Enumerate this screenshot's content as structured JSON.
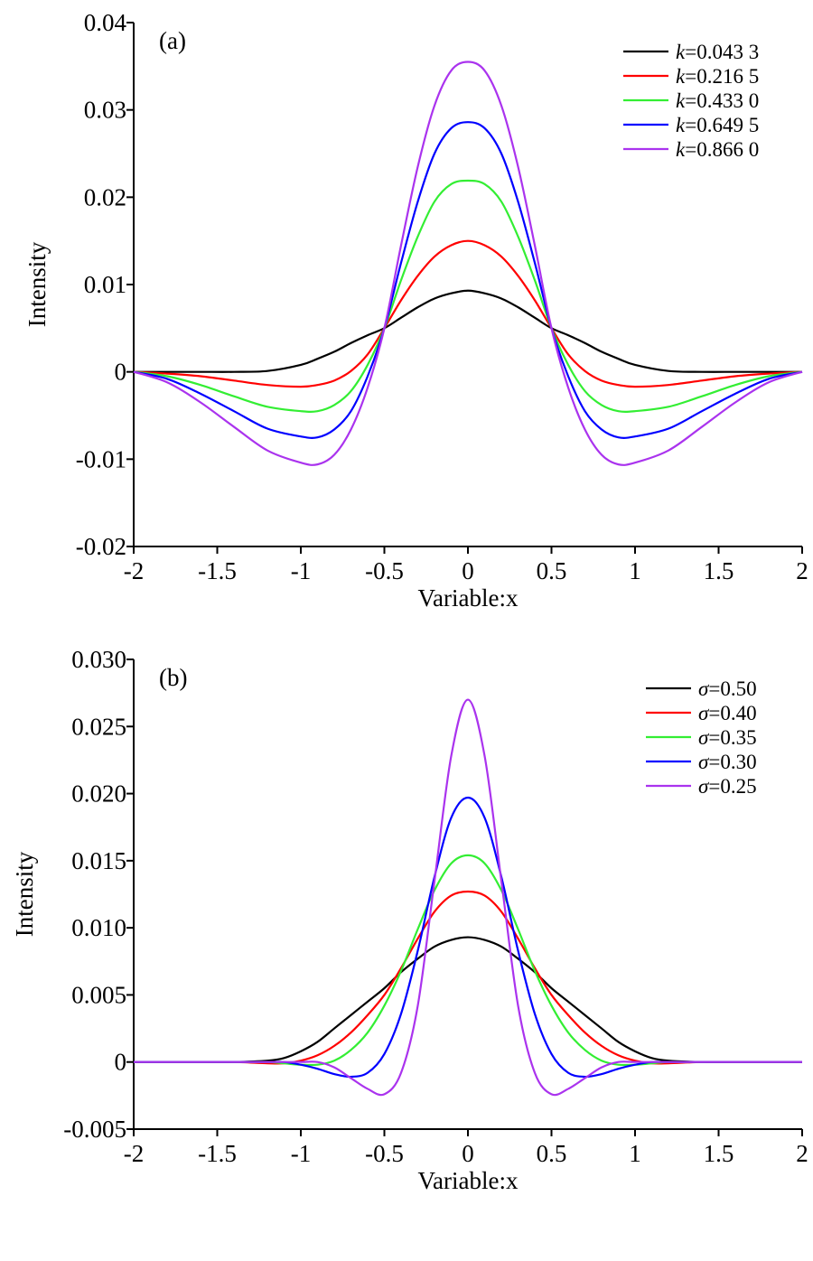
{
  "chart_data": [
    {
      "type": "line",
      "panel_label": "(a)",
      "xlabel": "Variable:x",
      "ylabel": "Intensity",
      "xlim": [
        -2,
        2
      ],
      "ylim": [
        -0.02,
        0.04
      ],
      "x_ticks": [
        -2,
        -1.5,
        -1,
        -0.5,
        0,
        0.5,
        1,
        1.5,
        2
      ],
      "x_tick_labels": [
        "-2",
        "-1.5",
        "-1",
        "-0.5",
        "0",
        "0.5",
        "1",
        "1.5",
        "2"
      ],
      "y_ticks": [
        -0.02,
        -0.01,
        0,
        0.01,
        0.02,
        0.03,
        0.04
      ],
      "y_tick_labels": [
        "-0.02",
        "-0.01",
        "0",
        "0.01",
        "0.02",
        "0.03",
        "0.04"
      ],
      "grid": false,
      "legend_position": "top-right",
      "x": [
        -2,
        -1.8,
        -1.6,
        -1.4,
        -1.2,
        -1,
        -0.9,
        -0.8,
        -0.7,
        -0.6,
        -0.5,
        -0.4,
        -0.3,
        -0.2,
        -0.1,
        0,
        0.1,
        0.2,
        0.3,
        0.4,
        0.5,
        0.6,
        0.7,
        0.8,
        0.9,
        1,
        1.2,
        1.4,
        1.6,
        1.8,
        2
      ],
      "series": [
        {
          "legend_var": "k",
          "legend_value": "=0.043 3",
          "color": "#000000",
          "values": [
            0,
            0,
            0,
            0,
            0.0001,
            0.0008,
            0.0015,
            0.0023,
            0.0033,
            0.0042,
            0.005,
            0.0062,
            0.0074,
            0.0084,
            0.009,
            0.0093,
            0.009,
            0.0084,
            0.0074,
            0.0062,
            0.005,
            0.0042,
            0.0033,
            0.0023,
            0.0015,
            0.0008,
            0.0001,
            0,
            0,
            0,
            0
          ]
        },
        {
          "legend_var": "k",
          "legend_value": "=0.216 5",
          "color": "#ff0000",
          "values": [
            0,
            -0.0002,
            -0.0005,
            -0.001,
            -0.0015,
            -0.0017,
            -0.0015,
            -0.001,
            0.0001,
            0.002,
            0.005,
            0.0082,
            0.011,
            0.0132,
            0.0145,
            0.015,
            0.0145,
            0.0132,
            0.011,
            0.0082,
            0.005,
            0.002,
            0.0001,
            -0.001,
            -0.0015,
            -0.0017,
            -0.0015,
            -0.001,
            -0.0005,
            -0.0002,
            0
          ]
        },
        {
          "legend_var": "k",
          "legend_value": "=0.433 0",
          "color": "#33ee33",
          "values": [
            0,
            -0.0005,
            -0.0015,
            -0.0028,
            -0.004,
            -0.0045,
            -0.0045,
            -0.0038,
            -0.0022,
            0.0008,
            0.005,
            0.0105,
            0.0155,
            0.0195,
            0.0215,
            0.0219,
            0.0215,
            0.0195,
            0.0155,
            0.0105,
            0.005,
            0.0008,
            -0.0022,
            -0.0038,
            -0.0045,
            -0.0045,
            -0.004,
            -0.0028,
            -0.0015,
            -0.0005,
            0
          ]
        },
        {
          "legend_var": "k",
          "legend_value": "=0.649 5",
          "color": "#0000ff",
          "values": [
            0,
            -0.0008,
            -0.0025,
            -0.0045,
            -0.0065,
            -0.0074,
            -0.0075,
            -0.0066,
            -0.0045,
            -0.0005,
            0.005,
            0.0125,
            0.0195,
            0.025,
            0.0279,
            0.0286,
            0.0279,
            0.025,
            0.0195,
            0.0125,
            0.005,
            -0.0005,
            -0.0045,
            -0.0066,
            -0.0075,
            -0.0074,
            -0.0065,
            -0.0045,
            -0.0025,
            -0.0008,
            0
          ]
        },
        {
          "legend_var": "k",
          "legend_value": "=0.866 0",
          "color": "#aa33ee",
          "values": [
            0,
            -0.0012,
            -0.0035,
            -0.0063,
            -0.009,
            -0.0104,
            -0.0106,
            -0.0095,
            -0.0066,
            -0.0018,
            0.005,
            0.0145,
            0.0235,
            0.0305,
            0.0345,
            0.0355,
            0.0345,
            0.0305,
            0.0235,
            0.0145,
            0.005,
            -0.0018,
            -0.0066,
            -0.0095,
            -0.0106,
            -0.0104,
            -0.009,
            -0.0063,
            -0.0035,
            -0.0012,
            0
          ]
        }
      ]
    },
    {
      "type": "line",
      "panel_label": "(b)",
      "xlabel": "Variable:x",
      "ylabel": "Intensity",
      "xlim": [
        -2,
        2
      ],
      "ylim": [
        -0.005,
        0.03
      ],
      "x_ticks": [
        -2,
        -1.5,
        -1,
        -0.5,
        0,
        0.5,
        1,
        1.5,
        2
      ],
      "x_tick_labels": [
        "-2",
        "-1.5",
        "-1",
        "-0.5",
        "0",
        "0.5",
        "1",
        "1.5",
        "2"
      ],
      "y_ticks": [
        -0.005,
        0,
        0.005,
        0.01,
        0.015,
        0.02,
        0.025,
        0.03
      ],
      "y_tick_labels": [
        "-0.005",
        "0",
        "0.005",
        "0.010",
        "0.015",
        "0.020",
        "0.025",
        "0.030"
      ],
      "grid": false,
      "legend_position": "top-right",
      "x": [
        -2,
        -1.8,
        -1.6,
        -1.4,
        -1.2,
        -1.1,
        -1,
        -0.9,
        -0.8,
        -0.7,
        -0.6,
        -0.5,
        -0.4,
        -0.3,
        -0.2,
        -0.1,
        0,
        0.1,
        0.2,
        0.3,
        0.4,
        0.5,
        0.6,
        0.7,
        0.8,
        0.9,
        1,
        1.1,
        1.2,
        1.4,
        1.6,
        1.8,
        2
      ],
      "series": [
        {
          "legend_var": "σ",
          "legend_value": "=0.50",
          "color": "#000000",
          "values": [
            0,
            0,
            0,
            0,
            0.0001,
            0.0003,
            0.0008,
            0.0015,
            0.0025,
            0.0035,
            0.0045,
            0.0055,
            0.0067,
            0.0077,
            0.0086,
            0.0091,
            0.0093,
            0.0091,
            0.0086,
            0.0077,
            0.0067,
            0.0055,
            0.0045,
            0.0035,
            0.0025,
            0.0015,
            0.0008,
            0.0003,
            0.0001,
            0,
            0,
            0,
            0
          ]
        },
        {
          "legend_var": "σ",
          "legend_value": "=0.40",
          "color": "#ff0000",
          "values": [
            0,
            0,
            0,
            0,
            -0.0001,
            -0.0001,
            0.0001,
            0.0005,
            0.0012,
            0.0022,
            0.0035,
            0.005,
            0.007,
            0.0092,
            0.0112,
            0.0124,
            0.0127,
            0.0124,
            0.0112,
            0.0092,
            0.007,
            0.005,
            0.0035,
            0.0022,
            0.0012,
            0.0005,
            0.0001,
            -0.0001,
            -0.0001,
            0,
            0,
            0,
            0
          ]
        },
        {
          "legend_var": "σ",
          "legend_value": "=0.35",
          "color": "#33ee33",
          "values": [
            0,
            0,
            0,
            0,
            0,
            -0.0001,
            -0.0002,
            -0.0002,
            0.0001,
            0.0009,
            0.0022,
            0.0042,
            0.0068,
            0.0099,
            0.0128,
            0.0148,
            0.0154,
            0.0148,
            0.0128,
            0.0099,
            0.0068,
            0.0042,
            0.0022,
            0.0009,
            0.0001,
            -0.0002,
            -0.0002,
            -0.0001,
            0,
            0,
            0,
            0,
            0
          ]
        },
        {
          "legend_var": "σ",
          "legend_value": "=0.30",
          "color": "#0000ff",
          "values": [
            0,
            0,
            0,
            0,
            0,
            0,
            -0.0002,
            -0.0005,
            -0.0009,
            -0.0011,
            -0.0008,
            0.0006,
            0.0036,
            0.0083,
            0.0138,
            0.0182,
            0.0197,
            0.0182,
            0.0138,
            0.0083,
            0.0036,
            0.0006,
            -0.0008,
            -0.0011,
            -0.0009,
            -0.0005,
            -0.0002,
            0,
            0,
            0,
            0,
            0,
            0
          ]
        },
        {
          "legend_var": "σ",
          "legend_value": "=0.25",
          "color": "#aa33ee",
          "values": [
            0,
            0,
            0,
            0,
            0,
            0,
            0,
            0,
            -0.0004,
            -0.0012,
            -0.002,
            -0.0024,
            -0.0008,
            0.0042,
            0.0135,
            0.0228,
            0.027,
            0.0228,
            0.0135,
            0.0042,
            -0.0008,
            -0.0024,
            -0.002,
            -0.0012,
            -0.0004,
            0,
            0,
            0,
            0,
            0,
            0,
            0,
            0
          ]
        }
      ]
    }
  ]
}
